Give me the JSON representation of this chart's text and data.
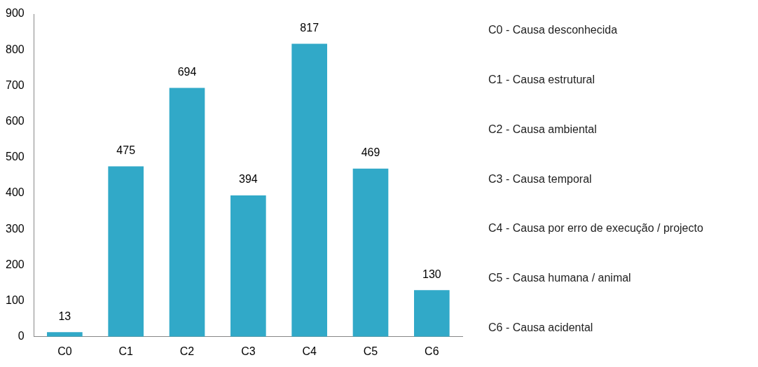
{
  "chart_data": {
    "type": "bar",
    "categories": [
      "C0",
      "C1",
      "C2",
      "C3",
      "C4",
      "C5",
      "C6"
    ],
    "values": [
      13,
      475,
      694,
      394,
      817,
      469,
      130
    ],
    "color": "#31a9c8",
    "ylim": [
      0,
      900
    ],
    "yticks": [
      0,
      100,
      200,
      300,
      400,
      500,
      600,
      700,
      800,
      900
    ],
    "grid": false,
    "legend": false,
    "data_labels": true,
    "annotations": [
      "C0 - Causa desconhecida",
      "C1 - Causa estrutural",
      "C2 - Causa ambiental",
      "C3 - Causa temporal",
      "C4 - Causa por erro de execução / projecto",
      "C5 - Causa humana / animal",
      "C6 - Causa acidental"
    ]
  }
}
